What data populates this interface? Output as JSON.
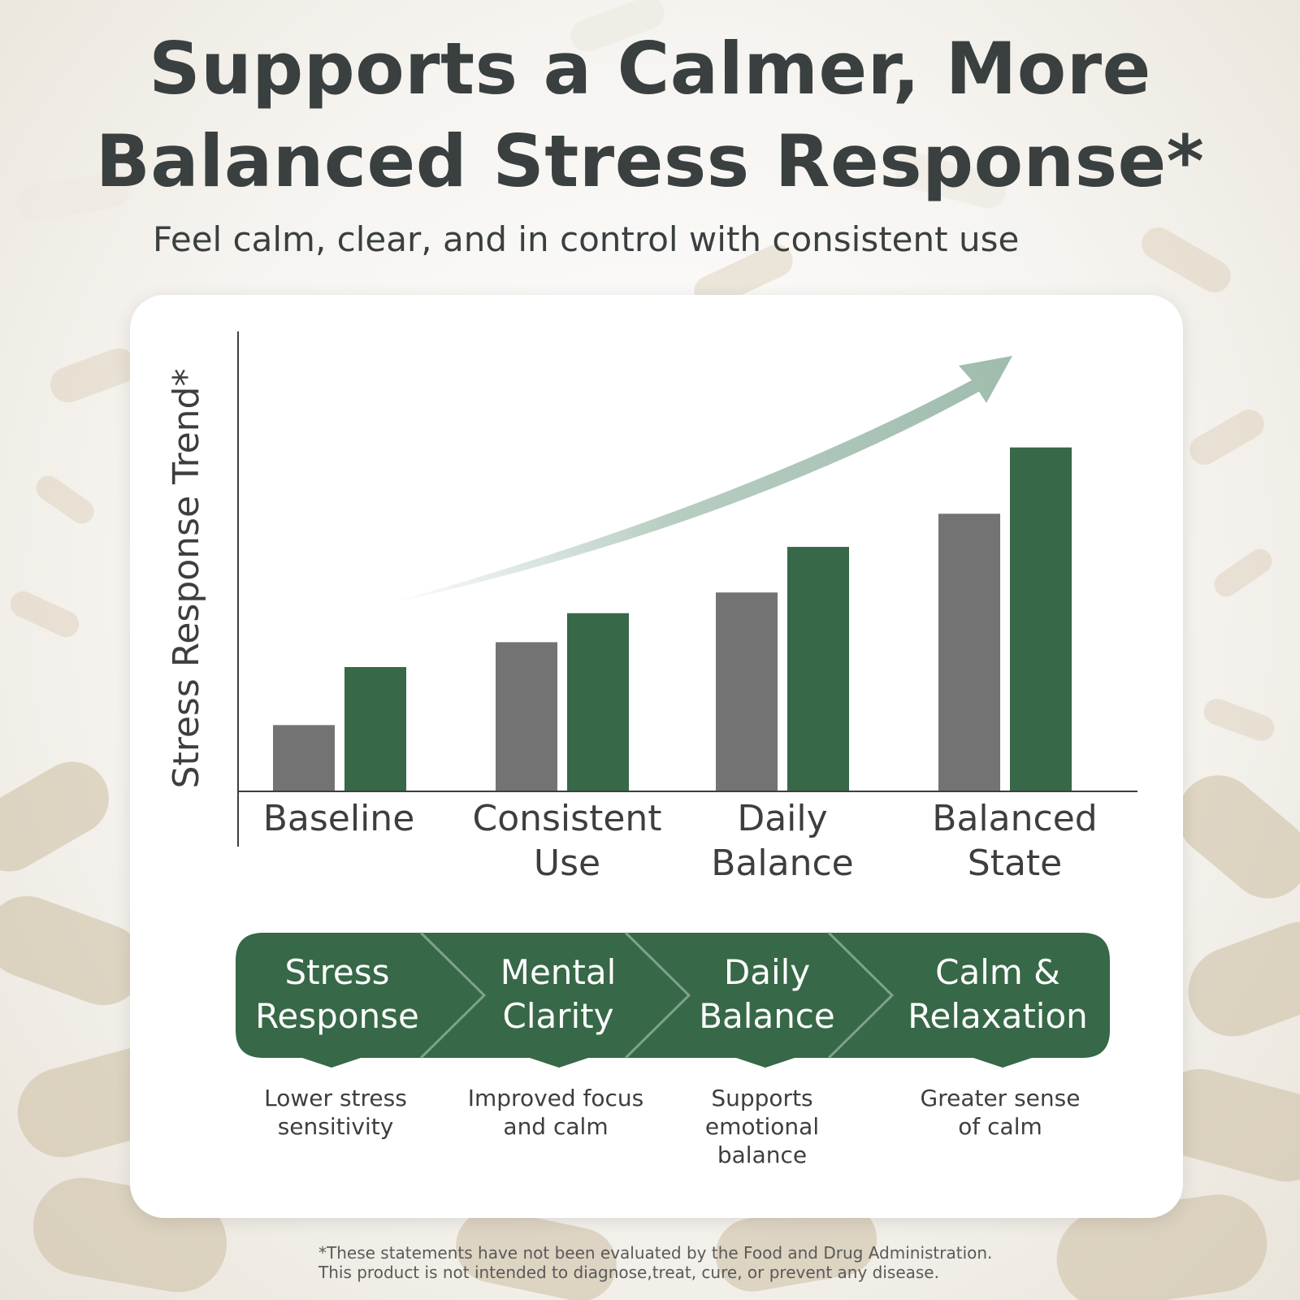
{
  "headline": {
    "line1": "Supports a Calmer, More",
    "line2": "Balanced Stress Response*"
  },
  "subtitle": "Feel calm, clear, and in control with consistent use",
  "colors": {
    "green": "#376847",
    "gray": "#737373",
    "arrow": "#9fbcad",
    "text": "#3a3f3f"
  },
  "chart_data": {
    "type": "bar",
    "ylabel": "Stress Response Trend*",
    "categories": [
      [
        "Baseline"
      ],
      [
        "Consistent",
        "Use"
      ],
      [
        "Daily",
        "Balance"
      ],
      [
        "Balanced",
        "State"
      ]
    ],
    "series": [
      {
        "color": "#737373",
        "values": [
          16,
          36,
          48,
          67
        ]
      },
      {
        "color": "#376847",
        "values": [
          30,
          43,
          59,
          83
        ]
      }
    ],
    "ylim": [
      0,
      100
    ],
    "grid": false,
    "trend_arrow": "upward"
  },
  "steps": [
    {
      "title": [
        "Stress",
        "Response"
      ],
      "desc": [
        "Lower stress",
        "sensitivity"
      ]
    },
    {
      "title": [
        "Mental",
        "Clarity"
      ],
      "desc": [
        "Improved focus",
        "and calm"
      ]
    },
    {
      "title": [
        "Daily",
        "Balance"
      ],
      "desc": [
        "Supports",
        "emotional",
        "balance"
      ]
    },
    {
      "title": [
        "Calm &",
        "Relaxation"
      ],
      "desc": [
        "Greater sense",
        "of calm"
      ]
    }
  ],
  "disclaimer": {
    "line1": "*These statements have not been evaluated by the Food and Drug Administration.",
    "line2": "This product is not intended to diagnose,treat, cure, or prevent any disease."
  }
}
